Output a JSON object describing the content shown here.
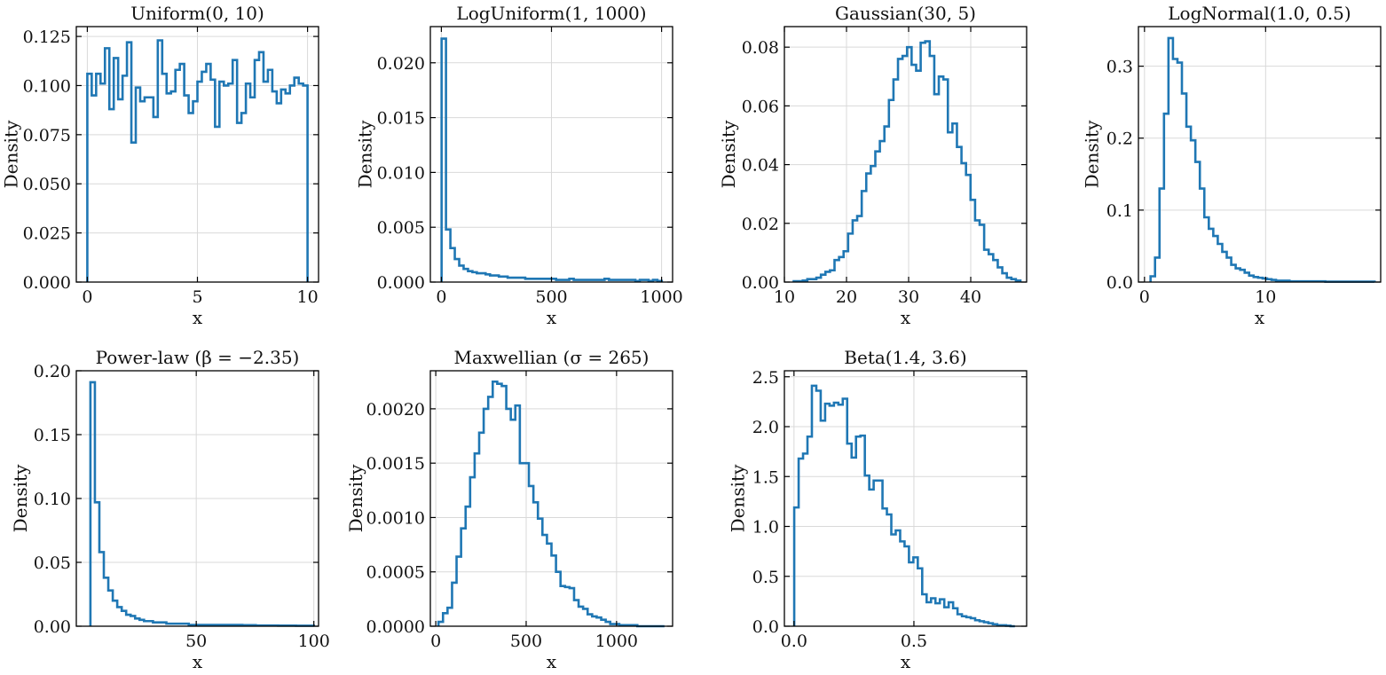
{
  "chart_data": [
    {
      "type": "histogram",
      "title": "Uniform(0, 10)",
      "xlabel": "x",
      "ylabel": "Density",
      "xlim": [
        -0.5,
        10.5
      ],
      "ylim": [
        0,
        0.13
      ],
      "xticks": [
        0,
        5,
        10
      ],
      "xtick_labels": [
        "0",
        "5",
        "10"
      ],
      "yticks": [
        0,
        0.025,
        0.05,
        0.075,
        0.1,
        0.125
      ],
      "ytick_labels": [
        "0.000",
        "0.025",
        "0.050",
        "0.075",
        "0.100",
        "0.125"
      ],
      "bin_start": 0,
      "bin_width": 0.2,
      "values": [
        0.106,
        0.095,
        0.106,
        0.101,
        0.119,
        0.088,
        0.114,
        0.093,
        0.105,
        0.122,
        0.071,
        0.099,
        0.092,
        0.094,
        0.094,
        0.084,
        0.123,
        0.106,
        0.096,
        0.097,
        0.108,
        0.111,
        0.095,
        0.086,
        0.092,
        0.102,
        0.107,
        0.111,
        0.103,
        0.079,
        0.102,
        0.1,
        0.101,
        0.113,
        0.081,
        0.086,
        0.101,
        0.094,
        0.113,
        0.117,
        0.102,
        0.108,
        0.097,
        0.091,
        0.098,
        0.096,
        0.1,
        0.104,
        0.101,
        0.1
      ]
    },
    {
      "type": "histogram",
      "title": "LogUniform(1, 1000)",
      "xlabel": "x",
      "ylabel": "Density",
      "xlim": [
        -50,
        1050
      ],
      "ylim": [
        0,
        0.0233
      ],
      "xticks": [
        0,
        500,
        1000
      ],
      "xtick_labels": [
        "0",
        "500",
        "1000"
      ],
      "yticks": [
        0,
        0.005,
        0.01,
        0.015,
        0.02
      ],
      "ytick_labels": [
        "0.000",
        "0.005",
        "0.010",
        "0.015",
        "0.020"
      ],
      "bin_start": 1,
      "bin_width": 20,
      "values": [
        0.0222,
        0.0048,
        0.0031,
        0.0021,
        0.0015,
        0.0012,
        0.001,
        0.0009,
        0.0008,
        0.0008,
        0.0007,
        0.0006,
        0.0006,
        0.0005,
        0.0005,
        0.0004,
        0.0004,
        0.0004,
        0.0004,
        0.0003,
        0.0003,
        0.0003,
        0.0003,
        0.0003,
        0.0003,
        0.0003,
        0.0002,
        0.0002,
        0.0002,
        0.0003,
        0.0002,
        0.0002,
        0.0002,
        0.0002,
        0.0002,
        0.0002,
        0.0002,
        0.0003,
        0.0002,
        0.0002,
        0.0002,
        0.0002,
        0.0002,
        0.0002,
        0.0001,
        0.0002,
        0.0002,
        0.0001,
        0.0002,
        0.0001
      ]
    },
    {
      "type": "histogram",
      "title": "Gaussian(30, 5)",
      "xlabel": "x",
      "ylabel": "Density",
      "xlim": [
        10,
        49
      ],
      "ylim": [
        0,
        0.087
      ],
      "xticks": [
        10,
        20,
        30,
        40
      ],
      "xtick_labels": [
        "10",
        "20",
        "30",
        "40"
      ],
      "yticks": [
        0,
        0.02,
        0.04,
        0.06,
        0.08
      ],
      "ytick_labels": [
        "0.00",
        "0.02",
        "0.04",
        "0.06",
        "0.08"
      ],
      "bin_start": 11.5,
      "bin_width": 0.73,
      "values": [
        0.0003,
        0.0003,
        0.0005,
        0.001,
        0.001,
        0.0015,
        0.0025,
        0.0035,
        0.004,
        0.0075,
        0.0085,
        0.0105,
        0.0165,
        0.021,
        0.0225,
        0.031,
        0.037,
        0.0395,
        0.0445,
        0.048,
        0.053,
        0.062,
        0.069,
        0.076,
        0.077,
        0.08,
        0.074,
        0.072,
        0.0815,
        0.082,
        0.077,
        0.064,
        0.07,
        0.069,
        0.051,
        0.054,
        0.046,
        0.0405,
        0.0365,
        0.028,
        0.021,
        0.0195,
        0.011,
        0.0095,
        0.0075,
        0.005,
        0.003,
        0.0015,
        0.001,
        0.0005
      ]
    },
    {
      "type": "histogram",
      "title": "LogNormal(1.0, 0.5)",
      "xlabel": "x",
      "ylabel": "Density",
      "xlim": [
        -0.5,
        19.5
      ],
      "ylim": [
        0,
        0.355
      ],
      "xticks": [
        0,
        10
      ],
      "xtick_labels": [
        "0",
        "10"
      ],
      "yticks": [
        0,
        0.1,
        0.2,
        0.3
      ],
      "ytick_labels": [
        "0.0",
        "0.1",
        "0.2",
        "0.3"
      ],
      "bin_start": 0.5,
      "bin_width": 0.37,
      "values": [
        0.008,
        0.034,
        0.13,
        0.234,
        0.339,
        0.31,
        0.305,
        0.262,
        0.216,
        0.197,
        0.167,
        0.13,
        0.09,
        0.074,
        0.064,
        0.053,
        0.042,
        0.034,
        0.024,
        0.019,
        0.017,
        0.013,
        0.009,
        0.007,
        0.006,
        0.005,
        0.004,
        0.003,
        0.002,
        0.002,
        0.002,
        0.001,
        0.001,
        0.001,
        0.001,
        0.001,
        0.001,
        0.001,
        0.001,
        0.0005,
        0.0005,
        0.0005,
        0.0005,
        0.0005,
        0.0005,
        0.0005,
        0.0005,
        0.0005,
        0.0005,
        0.0005
      ]
    },
    {
      "type": "histogram",
      "title": "Power-law (β = −2.35)",
      "xlabel": "x",
      "ylabel": "Density",
      "xlim": [
        -1,
        102
      ],
      "ylim": [
        0,
        0.2
      ],
      "xticks": [
        50,
        100
      ],
      "xtick_labels": [
        "50",
        "100"
      ],
      "yticks": [
        0,
        0.05,
        0.1,
        0.15,
        0.2
      ],
      "ytick_labels": [
        "0.00",
        "0.05",
        "0.10",
        "0.15",
        "0.20"
      ],
      "bin_start": 5,
      "bin_width": 1.9,
      "values": [
        0.191,
        0.097,
        0.058,
        0.038,
        0.028,
        0.02,
        0.015,
        0.012,
        0.009,
        0.008,
        0.006,
        0.005,
        0.004,
        0.004,
        0.003,
        0.003,
        0.003,
        0.002,
        0.002,
        0.002,
        0.002,
        0.002,
        0.001,
        0.001,
        0.001,
        0.001,
        0.001,
        0.001,
        0.001,
        0.001,
        0.001,
        0.001,
        0.001,
        0.001,
        0.0008,
        0.0008,
        0.0008,
        0.0006,
        0.0006,
        0.0006,
        0.0006,
        0.0006,
        0.0005,
        0.0005,
        0.0005,
        0.0005,
        0.0004,
        0.0004,
        0.0004,
        0.0004
      ]
    },
    {
      "type": "histogram",
      "title": "Maxwellian (σ = 265)",
      "xlabel": "x",
      "ylabel": "Density",
      "xlim": [
        -30,
        1310
      ],
      "ylim": [
        0,
        0.00235
      ],
      "xticks": [
        0,
        500,
        1000
      ],
      "xtick_labels": [
        "0",
        "500",
        "1000"
      ],
      "yticks": [
        0,
        0.0005,
        0.001,
        0.0015,
        0.002
      ],
      "ytick_labels": [
        "0.0000",
        "0.0005",
        "0.0010",
        "0.0015",
        "0.0020"
      ],
      "bin_start": 15,
      "bin_width": 25,
      "values": [
        4e-05,
        0.00012,
        0.00017,
        0.0004,
        0.00064,
        0.0009,
        0.0011,
        0.00137,
        0.00159,
        0.00178,
        0.002,
        0.00211,
        0.00225,
        0.00223,
        0.00221,
        0.002,
        0.0019,
        0.00203,
        0.0015,
        0.0015,
        0.00129,
        0.00114,
        0.00099,
        0.00084,
        0.00076,
        0.00065,
        0.0005,
        0.00037,
        0.00036,
        0.00035,
        0.00024,
        0.00018,
        0.00016,
        0.00011,
        9e-05,
        8e-05,
        6e-05,
        4e-05,
        2e-05,
        2e-05,
        1e-05,
        1e-05,
        1e-05,
        1e-05,
        0.0,
        0.0,
        0.0,
        0.0,
        0.0,
        0.0
      ]
    },
    {
      "type": "histogram",
      "title": "Beta(1.4, 3.6)",
      "xlabel": "x",
      "ylabel": "Density",
      "xlim": [
        -0.04,
        0.97
      ],
      "ylim": [
        0,
        2.56
      ],
      "xticks": [
        0,
        0.5
      ],
      "xtick_labels": [
        "0.0",
        "0.5"
      ],
      "yticks": [
        0,
        0.5,
        1,
        1.5,
        2,
        2.5
      ],
      "ytick_labels": [
        "0.0",
        "0.5",
        "1.0",
        "1.5",
        "2.0",
        "2.5"
      ],
      "bin_start": 0.001,
      "bin_width": 0.0184,
      "values": [
        1.19,
        1.68,
        1.73,
        1.9,
        2.41,
        2.36,
        2.06,
        2.23,
        2.21,
        2.24,
        2.22,
        2.28,
        1.83,
        1.69,
        1.9,
        1.91,
        1.51,
        1.37,
        1.46,
        1.46,
        1.18,
        1.12,
        0.92,
        0.96,
        0.85,
        0.8,
        0.64,
        0.69,
        0.58,
        0.32,
        0.24,
        0.28,
        0.23,
        0.27,
        0.19,
        0.24,
        0.18,
        0.12,
        0.1,
        0.09,
        0.08,
        0.06,
        0.05,
        0.04,
        0.03,
        0.02,
        0.01,
        0.01,
        0.005,
        0.0
      ]
    }
  ]
}
